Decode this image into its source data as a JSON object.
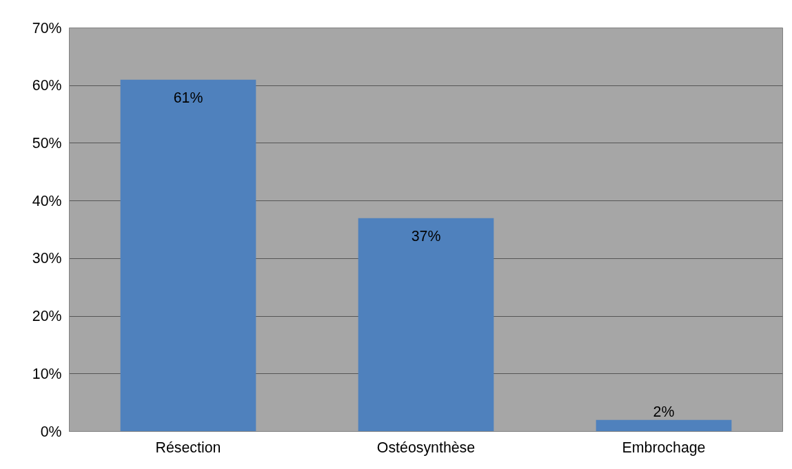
{
  "chart_data": {
    "type": "bar",
    "categories": [
      "Résection",
      "Ostéosynthèse",
      "Embrochage"
    ],
    "values": [
      61,
      37,
      2
    ],
    "value_labels": [
      "61%",
      "37%",
      "2%"
    ],
    "color": "#4f81bd",
    "ylim": [
      0,
      70
    ],
    "yticks": [
      {
        "value": 0,
        "label": "0%"
      },
      {
        "value": 10,
        "label": "10%"
      },
      {
        "value": 20,
        "label": "20%"
      },
      {
        "value": 30,
        "label": "30%"
      },
      {
        "value": 40,
        "label": "40%"
      },
      {
        "value": 50,
        "label": "50%"
      },
      {
        "value": 60,
        "label": "60%"
      },
      {
        "value": 70,
        "label": "70%"
      }
    ],
    "grid": "y"
  }
}
